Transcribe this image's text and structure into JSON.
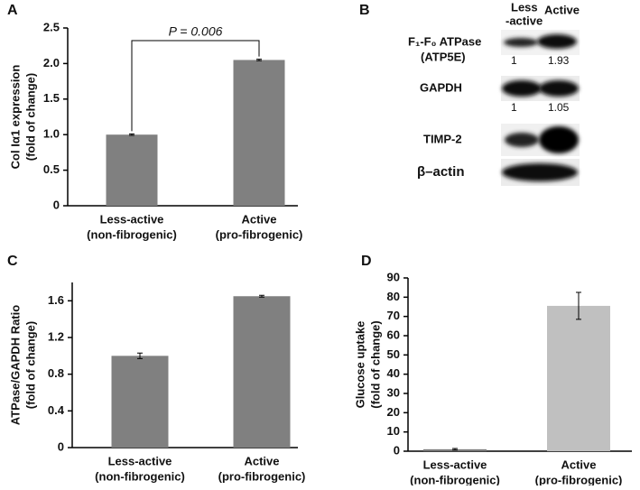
{
  "chart_data": [
    {
      "type": "bar",
      "panel": "A",
      "ylabel": [
        "Col Iα1 expression",
        "(fold of change)"
      ],
      "categories": [
        "Less-active",
        "Active"
      ],
      "subcategories": [
        "(non-fibrogenic)",
        "(pro-fibrogenic)"
      ],
      "values": [
        1.0,
        2.05
      ],
      "errors": [
        0.01,
        0.01
      ],
      "colors": [
        "#808080",
        "#808080"
      ],
      "ylim": [
        0,
        2.5
      ],
      "yticks": [
        0,
        0.5,
        {
          "value": 1,
          "label": "1.0"
        },
        1.5,
        {
          "value": 2,
          "label": "2.0"
        },
        2.5
      ],
      "annotation": "P = 0.006"
    },
    {
      "type": "bar",
      "panel": "C",
      "ylabel": [
        "ATPase/GAPDH Ratio",
        "(fold of change)"
      ],
      "categories": [
        "Less-active",
        "Active"
      ],
      "subcategories": [
        "(non-fibrogenic)",
        "(pro-fibrogenic)"
      ],
      "values": [
        1.0,
        1.65
      ],
      "errors": [
        0.03,
        0.01
      ],
      "colors": [
        "#808080",
        "#808080"
      ],
      "ylim": [
        0,
        1.8
      ],
      "yticks": [
        0,
        0.4,
        0.8,
        1.2,
        1.6
      ]
    },
    {
      "type": "bar",
      "panel": "D",
      "ylabel": [
        "Glucose uptake",
        "(fold of change)"
      ],
      "categories": [
        "Less-active",
        "Active"
      ],
      "subcategories": [
        "(non-fibrogenic)",
        "(pro-fibrogenic)"
      ],
      "values": [
        1,
        75.5
      ],
      "errors": [
        0.4,
        7
      ],
      "colors": [
        "#7a7a7a",
        "#c0c0c0"
      ],
      "ylim": [
        0,
        90
      ],
      "yticks": [
        0,
        10,
        20,
        30,
        40,
        50,
        60,
        70,
        80,
        90
      ]
    }
  ],
  "blot": {
    "panel": "B",
    "columns": [
      "Less",
      "-active",
      "Active"
    ],
    "rows": [
      {
        "label": [
          "F₁-F₀ ATPase",
          "(ATP5E)"
        ],
        "ratios": [
          "1",
          "1.93"
        ]
      },
      {
        "label": [
          "GAPDH"
        ],
        "ratios": [
          "1",
          "1.05"
        ]
      },
      {
        "label": [
          "TIMP-2"
        ]
      },
      {
        "label": [
          "β–actin"
        ]
      }
    ]
  }
}
